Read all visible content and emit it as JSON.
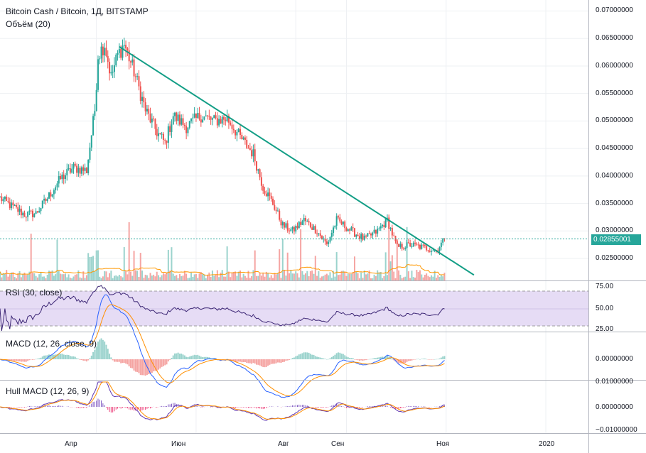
{
  "header": {
    "title": "Bitcoin Cash / Bitcoin, 1Д, BITSTAMP",
    "volume_label": "Объём (20)"
  },
  "last_price": "0.02855001",
  "price_axis": [
    "0.07000000",
    "0.06500000",
    "0.06000000",
    "0.05500000",
    "0.05000000",
    "0.04500000",
    "0.04000000",
    "0.03500000",
    "0.03000000",
    "0.02500000"
  ],
  "time_axis": [
    "Апр",
    "Июн",
    "Авг",
    "Сен",
    "Ноя",
    "2020"
  ],
  "panels": {
    "rsi": {
      "label": "RSI (30, close)",
      "axis": [
        "75.00",
        "50.00",
        "25.00"
      ]
    },
    "macd": {
      "label": "MACD (12, 26, close, 9)",
      "axis": [
        "0.00000000"
      ]
    },
    "hull": {
      "label": "Hull MACD (12, 26, 9)",
      "axis": [
        "0.01000000",
        "0.00000000",
        "−0.01000000"
      ]
    }
  },
  "colors": {
    "up": "#26a69a",
    "down": "#ef5350",
    "trendline": "#139e86",
    "rsi_band": "#e6dcf5",
    "rsi_line": "#3b2574",
    "macd_line": "#2962ff",
    "signal_line": "#ff8f00",
    "volume_ma": "#ff9800"
  },
  "chart_data": {
    "type": "candlestick",
    "title": "Bitcoin Cash / Bitcoin, 1Д, BITSTAMP",
    "ylim": [
      0.021,
      0.072
    ],
    "x_range": [
      "2019-02-01",
      "2020-01-31"
    ],
    "anchors": [
      [
        "2019-02-01",
        0.036
      ],
      [
        "2019-02-08",
        0.0345
      ],
      [
        "2019-02-16",
        0.033
      ],
      [
        "2019-02-23",
        0.0332
      ],
      [
        "2019-03-02",
        0.036
      ],
      [
        "2019-03-10",
        0.0395
      ],
      [
        "2019-03-18",
        0.0415
      ],
      [
        "2019-03-26",
        0.041
      ],
      [
        "2019-03-31",
        0.052
      ],
      [
        "2019-04-02",
        0.062
      ],
      [
        "2019-04-06",
        0.064
      ],
      [
        "2019-04-10",
        0.058
      ],
      [
        "2019-04-14",
        0.062
      ],
      [
        "2019-04-18",
        0.064
      ],
      [
        "2019-04-24",
        0.059
      ],
      [
        "2019-05-01",
        0.052
      ],
      [
        "2019-05-08",
        0.048
      ],
      [
        "2019-05-13",
        0.046
      ],
      [
        "2019-05-18",
        0.051
      ],
      [
        "2019-05-26",
        0.049
      ],
      [
        "2019-06-04",
        0.051
      ],
      [
        "2019-06-12",
        0.05
      ],
      [
        "2019-06-20",
        0.0505
      ],
      [
        "2019-06-28",
        0.047
      ],
      [
        "2019-07-06",
        0.044
      ],
      [
        "2019-07-12",
        0.038
      ],
      [
        "2019-07-18",
        0.035
      ],
      [
        "2019-07-24",
        0.031
      ],
      [
        "2019-07-30",
        0.03
      ],
      [
        "2019-08-06",
        0.032
      ],
      [
        "2019-08-14",
        0.03
      ],
      [
        "2019-08-20",
        0.0275
      ],
      [
        "2019-08-26",
        0.032
      ],
      [
        "2019-09-04",
        0.03
      ],
      [
        "2019-09-12",
        0.0285
      ],
      [
        "2019-09-20",
        0.03
      ],
      [
        "2019-09-26",
        0.032
      ],
      [
        "2019-10-02",
        0.027
      ],
      [
        "2019-10-10",
        0.0275
      ],
      [
        "2019-10-18",
        0.027
      ],
      [
        "2019-10-26",
        0.0265
      ],
      [
        "2019-10-31",
        0.0285
      ]
    ],
    "trendline": [
      [
        "2019-04-15",
        0.0635
      ],
      [
        "2019-11-18",
        0.022
      ]
    ],
    "last_close": 0.02855001,
    "rsi_ylim": [
      20,
      80
    ],
    "macd_ylim": [
      -0.002,
      0.002
    ],
    "hull_ylim": [
      -0.0112,
      0.0117
    ]
  }
}
